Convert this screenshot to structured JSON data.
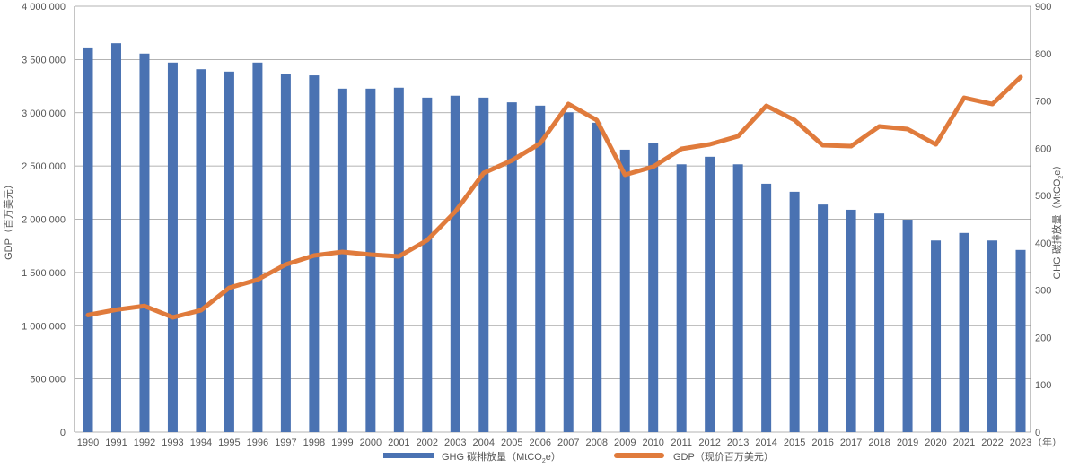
{
  "chart_data": {
    "type": "bar+line",
    "title": "",
    "categories": [
      "1990",
      "1991",
      "1992",
      "1993",
      "1994",
      "1995",
      "1996",
      "1997",
      "1998",
      "1999",
      "2000",
      "2001",
      "2002",
      "2003",
      "2004",
      "2005",
      "2006",
      "2007",
      "2008",
      "2009",
      "2010",
      "2011",
      "2012",
      "2013",
      "2014",
      "2015",
      "2016",
      "2017",
      "2018",
      "2019",
      "2020",
      "2021",
      "2022",
      "2023"
    ],
    "x_unit_label": "（年）",
    "left_axis": {
      "label": "GDP（百万美元）",
      "ylim": [
        0,
        4000000
      ],
      "ticks": [
        "0",
        "500 000",
        "1 000 000",
        "1 500 000",
        "2 000 000",
        "2 500 000",
        "3 000 000",
        "3 500 000",
        "4 000 000"
      ]
    },
    "right_axis": {
      "label_main": "GHG 碳排放量（MtCO",
      "label_sub": "2",
      "label_end": "e）",
      "ylim": [
        0,
        900
      ],
      "ticks": [
        "0",
        "100",
        "200",
        "300",
        "400",
        "500",
        "600",
        "700",
        "800",
        "900"
      ]
    },
    "grid": true,
    "legend_position": "bottom",
    "series": [
      {
        "name": "GHG 碳排放量（MtCO₂e）",
        "legend_main": "GHG 碳排放量（MtCO",
        "legend_sub": "2",
        "legend_end": "e）",
        "type": "bar",
        "axis": "right",
        "color": "#4a72b2",
        "values": [
          813,
          822,
          800,
          781,
          767,
          762,
          781,
          756,
          754,
          726,
          726,
          728,
          707,
          711,
          707,
          697,
          690,
          676,
          654,
          597,
          612,
          566,
          582,
          566,
          525,
          508,
          481,
          470,
          462,
          449,
          405,
          421,
          405,
          385
        ]
      },
      {
        "name": "GDP（现价百万美元）",
        "type": "line",
        "axis": "left",
        "color": "#e07b3c",
        "values": [
          1100000,
          1150000,
          1185000,
          1078000,
          1145000,
          1356000,
          1432000,
          1575000,
          1659000,
          1693000,
          1667000,
          1651000,
          1802000,
          2072000,
          2434000,
          2552000,
          2712000,
          3082000,
          2931000,
          2417000,
          2493000,
          2661000,
          2703000,
          2779000,
          3065000,
          2931000,
          2695000,
          2686000,
          2872000,
          2846000,
          2703000,
          3141000,
          3082000,
          3335000
        ]
      }
    ]
  }
}
